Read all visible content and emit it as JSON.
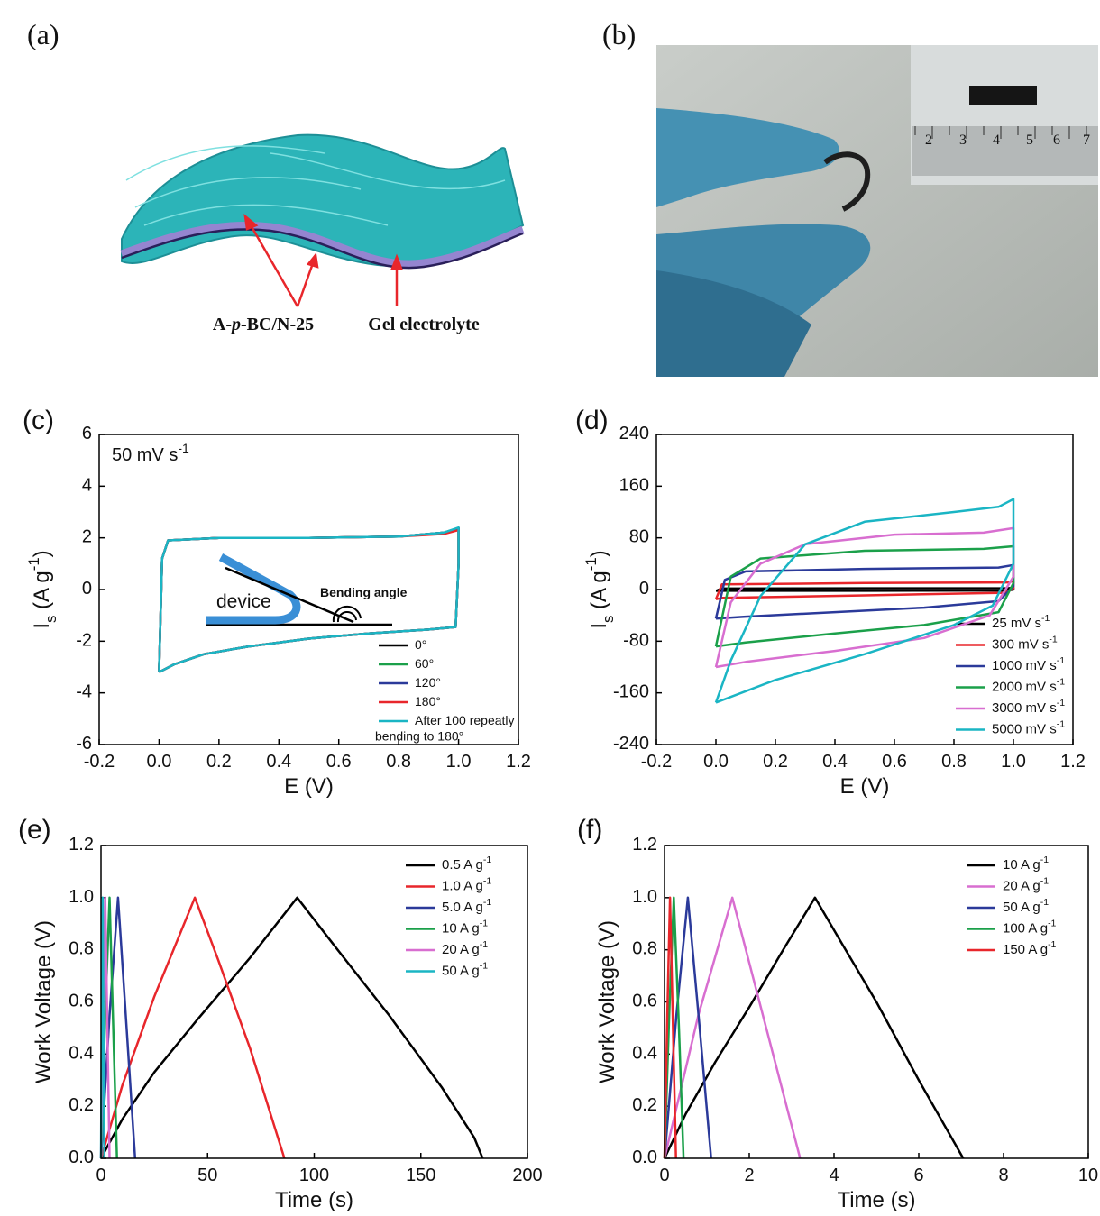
{
  "images": [
    {
      "label": "(a)",
      "annotations": [
        "A-<i>p</i>-BC/N-25",
        "Gel electrolyte"
      ]
    },
    {
      "label": "(b)",
      "ruler_labels": [
        "2",
        "3",
        "4",
        "5",
        "6",
        "7"
      ]
    }
  ],
  "chart_data": [
    {
      "type": "line",
      "label": "(c)",
      "xlabel": "E (V)",
      "ylabel": "I<sub>s</sub> (A g<sup>-1</sup>)",
      "annotations": [
        "50 mV s<sup>-1</sup>",
        "device",
        "Bending angle"
      ],
      "xlim": [
        -0.2,
        1.2
      ],
      "xticks": [
        -0.2,
        {
          "value": 0,
          "label": "0.0"
        },
        0.2,
        0.4,
        0.6,
        0.8,
        {
          "value": 1,
          "label": "1.0"
        },
        1.2
      ],
      "ylim": [
        -6,
        6
      ],
      "yticks": [
        -6,
        -4,
        -2,
        0,
        2,
        4,
        6
      ],
      "legend": "lower right",
      "series": [
        {
          "name": "0°",
          "color": "#000000",
          "x": [
            0,
            0.01,
            0.03,
            0.2,
            0.5,
            0.8,
            0.95,
            1.0,
            1.0,
            0.99,
            0.9,
            0.7,
            0.5,
            0.3,
            0.15,
            0.05,
            0
          ],
          "values": [
            -3.2,
            1.2,
            1.9,
            2.0,
            2.0,
            2.05,
            2.2,
            2.38,
            1.0,
            -1.45,
            -1.55,
            -1.7,
            -1.9,
            -2.2,
            -2.5,
            -2.9,
            -3.2
          ]
        },
        {
          "name": "60°",
          "color": "#1ba04a",
          "x": [
            0,
            0.01,
            0.03,
            0.2,
            0.5,
            0.8,
            0.95,
            1.0,
            1.0,
            0.99,
            0.9,
            0.7,
            0.5,
            0.3,
            0.15,
            0.05,
            0
          ],
          "values": [
            -3.2,
            1.2,
            1.9,
            2.0,
            2.0,
            2.05,
            2.2,
            2.36,
            1.0,
            -1.45,
            -1.55,
            -1.7,
            -1.9,
            -2.2,
            -2.5,
            -2.9,
            -3.2
          ]
        },
        {
          "name": "120°",
          "color": "#2b3a9a",
          "x": [
            0,
            0.01,
            0.03,
            0.2,
            0.5,
            0.8,
            0.95,
            1.0,
            1.0,
            0.99,
            0.9,
            0.7,
            0.5,
            0.3,
            0.15,
            0.05,
            0
          ],
          "values": [
            -3.2,
            1.2,
            1.9,
            2.0,
            2.0,
            2.05,
            2.2,
            2.35,
            1.0,
            -1.45,
            -1.55,
            -1.7,
            -1.9,
            -2.2,
            -2.5,
            -2.9,
            -3.2
          ]
        },
        {
          "name": "180°",
          "color": "#e8262b",
          "x": [
            0,
            0.01,
            0.03,
            0.2,
            0.5,
            0.8,
            0.95,
            1.0,
            1.0,
            0.99,
            0.9,
            0.7,
            0.5,
            0.3,
            0.15,
            0.05,
            0
          ],
          "values": [
            -3.2,
            1.2,
            1.9,
            2.0,
            2.0,
            2.05,
            2.15,
            2.3,
            1.0,
            -1.45,
            -1.55,
            -1.7,
            -1.9,
            -2.2,
            -2.5,
            -2.9,
            -3.2
          ]
        },
        {
          "name": "After 100 repeatly\nbending to 180°",
          "color": "#1ab5c4",
          "x": [
            0,
            0.01,
            0.03,
            0.2,
            0.5,
            0.8,
            0.95,
            1.0,
            1.0,
            0.99,
            0.9,
            0.7,
            0.5,
            0.3,
            0.15,
            0.05,
            0
          ],
          "values": [
            -3.2,
            1.2,
            1.9,
            2.0,
            2.0,
            2.05,
            2.2,
            2.4,
            1.0,
            -1.45,
            -1.55,
            -1.7,
            -1.9,
            -2.2,
            -2.5,
            -2.9,
            -3.2
          ]
        }
      ]
    },
    {
      "type": "line",
      "label": "(d)",
      "xlabel": "E (V)",
      "ylabel": "I<sub>s</sub> (A g<sup>-1</sup>)",
      "xlim": [
        -0.2,
        1.2
      ],
      "xticks": [
        -0.2,
        {
          "value": 0,
          "label": "0.0"
        },
        0.2,
        0.4,
        0.6,
        0.8,
        {
          "value": 1,
          "label": "1.0"
        },
        1.2
      ],
      "ylim": [
        -240,
        240
      ],
      "yticks": [
        -240,
        -160,
        -80,
        0,
        80,
        160,
        240
      ],
      "legend": "lower right",
      "series": [
        {
          "name": "25 mV s<sup>-1</sup>",
          "color": "#000000",
          "x": [
            0,
            0.02,
            0.5,
            0.98,
            1.0,
            1.0,
            0.98,
            0.5,
            0.02,
            0
          ],
          "values": [
            -2,
            1.5,
            2,
            2,
            3,
            0,
            -1.5,
            -2,
            -2,
            -2
          ]
        },
        {
          "name": "300 mV s<sup>-1</sup>",
          "color": "#e8262b",
          "x": [
            0,
            0.02,
            0.5,
            0.98,
            1.0,
            1.0,
            0.97,
            0.5,
            0.02,
            0
          ],
          "values": [
            -15,
            8,
            10,
            11,
            13,
            2,
            -5,
            -9,
            -13,
            -15
          ]
        },
        {
          "name": "1000 mV s<sup>-1</sup>",
          "color": "#2b3a9a",
          "x": [
            0,
            0.03,
            0.1,
            0.5,
            0.95,
            1.0,
            1.0,
            0.95,
            0.7,
            0.4,
            0.1,
            0
          ],
          "values": [
            -45,
            15,
            28,
            32,
            34,
            38,
            5,
            -18,
            -28,
            -35,
            -42,
            -45
          ]
        },
        {
          "name": "2000 mV s<sup>-1</sup>",
          "color": "#1ba04a",
          "x": [
            0,
            0.05,
            0.15,
            0.5,
            0.9,
            1.0,
            1.0,
            0.95,
            0.7,
            0.4,
            0.1,
            0
          ],
          "values": [
            -88,
            20,
            48,
            60,
            63,
            67,
            10,
            -35,
            -55,
            -68,
            -82,
            -88
          ]
        },
        {
          "name": "3000 mV s<sup>-1</sup>",
          "color": "#d86ed0",
          "x": [
            0,
            0.05,
            0.15,
            0.3,
            0.6,
            0.9,
            1.0,
            1.0,
            0.92,
            0.7,
            0.4,
            0.1,
            0
          ],
          "values": [
            -120,
            -20,
            40,
            70,
            85,
            88,
            95,
            20,
            -40,
            -75,
            -95,
            -112,
            -120
          ]
        },
        {
          "name": "5000 mV s<sup>-1</sup>",
          "color": "#1ab5c4",
          "x": [
            0,
            0.05,
            0.15,
            0.3,
            0.5,
            0.8,
            0.95,
            1.0,
            1.0,
            0.93,
            0.8,
            0.5,
            0.2,
            0
          ],
          "values": [
            -175,
            -110,
            -10,
            70,
            105,
            120,
            128,
            140,
            40,
            -25,
            -55,
            -100,
            -140,
            -175
          ]
        }
      ]
    },
    {
      "type": "line",
      "label": "(e)",
      "xlabel": "Time (s)",
      "ylabel": "Work Voltage (V)",
      "xlim": [
        0,
        200
      ],
      "xticks": [
        0,
        50,
        100,
        150,
        200
      ],
      "ylim": [
        0,
        1.2
      ],
      "yticks": [
        {
          "value": 0,
          "label": "0.0"
        },
        0.2,
        0.4,
        0.6,
        0.8,
        {
          "value": 1,
          "label": "1.0"
        },
        1.2
      ],
      "legend": "upper right",
      "series": [
        {
          "name": "0.5 A g<sup>-1</sup>",
          "color": "#000000",
          "x": [
            0,
            10,
            25,
            45,
            70,
            92,
            110,
            135,
            160,
            175,
            179
          ],
          "values": [
            0,
            0.15,
            0.33,
            0.53,
            0.77,
            1.0,
            0.81,
            0.55,
            0.27,
            0.08,
            0
          ]
        },
        {
          "name": "1.0 A g<sup>-1</sup>",
          "color": "#e8262b",
          "x": [
            0,
            10,
            25,
            44,
            55,
            70,
            86
          ],
          "values": [
            0,
            0.28,
            0.62,
            1.0,
            0.76,
            0.42,
            0
          ]
        },
        {
          "name": "5.0 A g<sup>-1</sup>",
          "color": "#2b3a9a",
          "x": [
            0,
            4,
            8,
            12,
            16
          ],
          "values": [
            0,
            0.55,
            1.0,
            0.5,
            0
          ]
        },
        {
          "name": "10 A g<sup>-1</sup>",
          "color": "#1ba04a",
          "x": [
            0,
            2,
            4,
            5.75,
            7.5
          ],
          "values": [
            0,
            0.55,
            1.0,
            0.5,
            0
          ]
        },
        {
          "name": "20 A g<sup>-1</sup>",
          "color": "#d86ed0",
          "x": [
            0,
            1,
            2,
            3,
            4
          ],
          "values": [
            0,
            0.55,
            1.0,
            0.5,
            0
          ]
        },
        {
          "name": "50 A g<sup>-1</sup>",
          "color": "#1ab5c4",
          "x": [
            0,
            0.4,
            0.8,
            1.2,
            1.6
          ],
          "values": [
            0,
            0.55,
            1.0,
            0.5,
            0
          ]
        }
      ]
    },
    {
      "type": "line",
      "label": "(f)",
      "xlabel": "Time (s)",
      "ylabel": "Work Voltage (V)",
      "xlim": [
        0,
        10
      ],
      "xticks": [
        0,
        2,
        4,
        6,
        8,
        10
      ],
      "ylim": [
        0,
        1.2
      ],
      "yticks": [
        {
          "value": 0,
          "label": "0.0"
        },
        0.2,
        0.4,
        0.6,
        0.8,
        {
          "value": 1,
          "label": "1.0"
        },
        1.2
      ],
      "legend": "upper right",
      "series": [
        {
          "name": "10 A g<sup>-1</sup>",
          "color": "#000000",
          "x": [
            0,
            0.5,
            1.2,
            2,
            2.8,
            3.55,
            4.2,
            5,
            6,
            6.7,
            7.05
          ],
          "values": [
            0,
            0.17,
            0.37,
            0.58,
            0.8,
            1.0,
            0.82,
            0.6,
            0.3,
            0.1,
            0
          ]
        },
        {
          "name": "20 A g<sup>-1</sup>",
          "color": "#d86ed0",
          "x": [
            0,
            0.8,
            1.6,
            2.4,
            3.2
          ],
          "values": [
            0,
            0.55,
            1.0,
            0.5,
            0
          ]
        },
        {
          "name": "50 A g<sup>-1</sup>",
          "color": "#2b3a9a",
          "x": [
            0,
            0.28,
            0.55,
            0.83,
            1.1
          ],
          "values": [
            0,
            0.55,
            1.0,
            0.5,
            0
          ]
        },
        {
          "name": "100 A g<sup>-1</sup>",
          "color": "#1ba04a",
          "x": [
            0,
            0.11,
            0.22,
            0.34,
            0.45
          ],
          "values": [
            0,
            0.55,
            1.0,
            0.5,
            0
          ]
        },
        {
          "name": "150 A g<sup>-1</sup>",
          "color": "#e8262b",
          "x": [
            0,
            0.065,
            0.13,
            0.2,
            0.27
          ],
          "values": [
            0,
            0.55,
            1.0,
            0.5,
            0
          ]
        }
      ]
    }
  ]
}
